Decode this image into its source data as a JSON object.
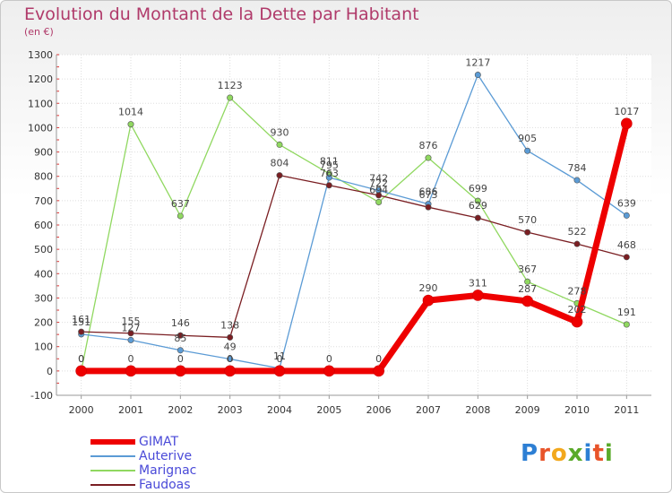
{
  "header": {
    "title": "Evolution du Montant de la Dette par Habitant",
    "subtitle": "(en €)"
  },
  "logo": {
    "text": "Proxiti",
    "letter_colors": [
      "#2d7fd4",
      "#e8542a",
      "#f2a81d",
      "#5aaa2a",
      "#2d7fd4",
      "#e8542a",
      "#5aaa2a"
    ]
  },
  "chart_data": {
    "type": "line",
    "x": [
      "2000",
      "2001",
      "2002",
      "2003",
      "2004",
      "2005",
      "2006",
      "2007",
      "2008",
      "2009",
      "2010",
      "2011"
    ],
    "ylim": [
      -100,
      1300
    ],
    "yticks": [
      "1300",
      "1200",
      "1100",
      "1000",
      "900",
      "800",
      "700",
      "600",
      "500",
      "400",
      "300",
      "200",
      "100",
      "0",
      "-100"
    ],
    "grid": true,
    "legend_position": "bottom-left",
    "series": [
      {
        "name": "Marignac",
        "color": "#90d860",
        "values": [
          0,
          1014,
          637,
          1123,
          930,
          811,
          694,
          876,
          699,
          367,
          278,
          191
        ]
      },
      {
        "name": "Auterive",
        "color": "#5b9bd5",
        "values": [
          151,
          127,
          85,
          49,
          11,
          795,
          742,
          686,
          1217,
          905,
          784,
          639
        ]
      },
      {
        "name": "Faudoas",
        "color": "#7a1e22",
        "values": [
          161,
          155,
          146,
          138,
          804,
          763,
          722,
          673,
          629,
          570,
          522,
          468
        ]
      },
      {
        "name": "GIMAT",
        "color": "#ee0000",
        "values": [
          0,
          0,
          0,
          0,
          0,
          0,
          0,
          290,
          311,
          287,
          202,
          1017
        ]
      }
    ],
    "labels": [
      {
        "series": "GIMAT",
        "x": "2000",
        "y": 0,
        "text": "0"
      },
      {
        "series": "GIMAT",
        "x": "2001",
        "y": 0,
        "text": "0"
      },
      {
        "series": "GIMAT",
        "x": "2002",
        "y": 0,
        "text": "0"
      },
      {
        "series": "GIMAT",
        "x": "2003",
        "y": 0,
        "text": "0"
      },
      {
        "series": "GIMAT",
        "x": "2004",
        "y": 0,
        "text": "0"
      },
      {
        "series": "GIMAT",
        "x": "2005",
        "y": 0,
        "text": "0"
      },
      {
        "series": "GIMAT",
        "x": "2006",
        "y": 0,
        "text": "0"
      },
      {
        "series": "GIMAT",
        "x": "2007",
        "y": 290,
        "text": "290"
      },
      {
        "series": "GIMAT",
        "x": "2008",
        "y": 311,
        "text": "311"
      },
      {
        "series": "GIMAT",
        "x": "2009",
        "y": 287,
        "text": "287"
      },
      {
        "series": "GIMAT",
        "x": "2010",
        "y": 202,
        "text": "202"
      },
      {
        "series": "GIMAT",
        "x": "2011",
        "y": 1017,
        "text": "1017"
      },
      {
        "series": "Auterive",
        "x": "2000",
        "y": 151,
        "text": "151"
      },
      {
        "series": "Auterive",
        "x": "2001",
        "y": 127,
        "text": "127"
      },
      {
        "series": "Auterive",
        "x": "2002",
        "y": 85,
        "text": "85"
      },
      {
        "series": "Auterive",
        "x": "2003",
        "y": 49,
        "text": "49"
      },
      {
        "series": "Auterive",
        "x": "2004",
        "y": 11,
        "text": "11"
      },
      {
        "series": "Auterive",
        "x": "2005",
        "y": 795,
        "text": "795"
      },
      {
        "series": "Auterive",
        "x": "2006",
        "y": 742,
        "text": "742"
      },
      {
        "series": "Auterive",
        "x": "2007",
        "y": 686,
        "text": "686"
      },
      {
        "series": "Auterive",
        "x": "2008",
        "y": 1217,
        "text": "1217"
      },
      {
        "series": "Auterive",
        "x": "2009",
        "y": 905,
        "text": "905"
      },
      {
        "series": "Auterive",
        "x": "2010",
        "y": 784,
        "text": "784"
      },
      {
        "series": "Auterive",
        "x": "2011",
        "y": 639,
        "text": "639"
      },
      {
        "series": "Marignac",
        "x": "2000",
        "y": 0,
        "text": "0"
      },
      {
        "series": "Marignac",
        "x": "2001",
        "y": 1014,
        "text": "1014"
      },
      {
        "series": "Marignac",
        "x": "2002",
        "y": 637,
        "text": "637"
      },
      {
        "series": "Marignac",
        "x": "2003",
        "y": 1123,
        "text": "1123"
      },
      {
        "series": "Marignac",
        "x": "2004",
        "y": 930,
        "text": "930"
      },
      {
        "series": "Marignac",
        "x": "2005",
        "y": 811,
        "text": "811"
      },
      {
        "series": "Marignac",
        "x": "2006",
        "y": 694,
        "text": "694"
      },
      {
        "series": "Marignac",
        "x": "2007",
        "y": 876,
        "text": "876"
      },
      {
        "series": "Marignac",
        "x": "2008",
        "y": 699,
        "text": "699"
      },
      {
        "series": "Marignac",
        "x": "2009",
        "y": 367,
        "text": "367"
      },
      {
        "series": "Marignac",
        "x": "2010",
        "y": 278,
        "text": "278"
      },
      {
        "series": "Marignac",
        "x": "2011",
        "y": 191,
        "text": "191"
      },
      {
        "series": "Faudoas",
        "x": "2000",
        "y": 161,
        "text": "161"
      },
      {
        "series": "Faudoas",
        "x": "2001",
        "y": 155,
        "text": "155"
      },
      {
        "series": "Faudoas",
        "x": "2002",
        "y": 146,
        "text": "146"
      },
      {
        "series": "Faudoas",
        "x": "2003",
        "y": 138,
        "text": "138"
      },
      {
        "series": "Faudoas",
        "x": "2004",
        "y": 804,
        "text": "804"
      },
      {
        "series": "Faudoas",
        "x": "2005",
        "y": 763,
        "text": "763"
      },
      {
        "series": "Faudoas",
        "x": "2006",
        "y": 722,
        "text": "722"
      },
      {
        "series": "Faudoas",
        "x": "2007",
        "y": 673,
        "text": "673"
      },
      {
        "series": "Faudoas",
        "x": "2008",
        "y": 629,
        "text": "629"
      },
      {
        "series": "Faudoas",
        "x": "2009",
        "y": 570,
        "text": "570"
      },
      {
        "series": "Faudoas",
        "x": "2010",
        "y": 522,
        "text": "522"
      },
      {
        "series": "Faudoas",
        "x": "2011",
        "y": 468,
        "text": "468"
      }
    ]
  },
  "legend": {
    "items": [
      {
        "label": "GIMAT",
        "color": "#ee0000"
      },
      {
        "label": "Auterive",
        "color": "#5b9bd5"
      },
      {
        "label": "Marignac",
        "color": "#90d860"
      },
      {
        "label": "Faudoas",
        "color": "#7a1e22"
      }
    ]
  }
}
